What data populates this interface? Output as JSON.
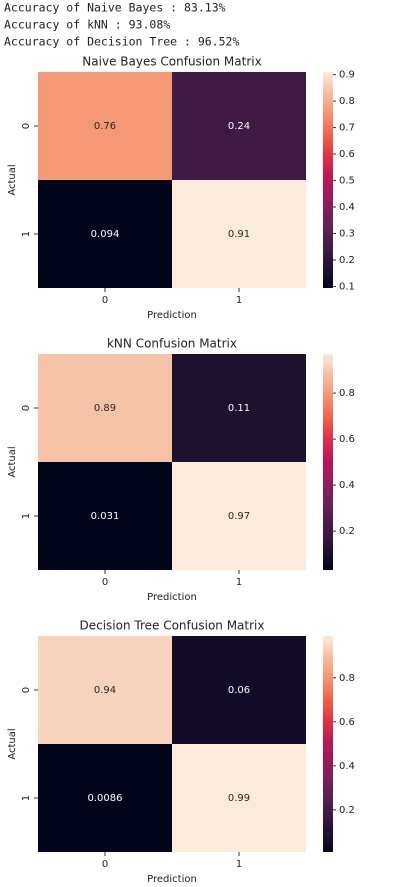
{
  "output_lines": [
    "Accuracy of Naive Bayes : 83.13%",
    "Accuracy of kNN : 93.08%",
    "Accuracy of Decision Tree : 96.52%"
  ],
  "chart_data": [
    {
      "type": "heatmap",
      "title": "Naive Bayes Confusion Matrix",
      "xlabel": "Prediction",
      "ylabel": "Actual",
      "x_categories": [
        "0",
        "1"
      ],
      "y_categories": [
        "0",
        "1"
      ],
      "values": [
        [
          0.76,
          0.24
        ],
        [
          0.094,
          0.91
        ]
      ],
      "colormap": "rocket",
      "colorbar_lim": [
        0.094,
        0.91
      ],
      "colorbar_ticks": [
        0.1,
        0.2,
        0.3,
        0.4,
        0.5,
        0.6,
        0.7,
        0.8,
        0.9
      ]
    },
    {
      "type": "heatmap",
      "title": "kNN Confusion Matrix",
      "xlabel": "Prediction",
      "ylabel": "Actual",
      "x_categories": [
        "0",
        "1"
      ],
      "y_categories": [
        "0",
        "1"
      ],
      "values": [
        [
          0.89,
          0.11
        ],
        [
          0.031,
          0.97
        ]
      ],
      "colormap": "rocket",
      "colorbar_lim": [
        0.031,
        0.97
      ],
      "colorbar_ticks": [
        0.2,
        0.4,
        0.6,
        0.8
      ]
    },
    {
      "type": "heatmap",
      "title": "Decision Tree Confusion Matrix",
      "xlabel": "Prediction",
      "ylabel": "Actual",
      "x_categories": [
        "0",
        "1"
      ],
      "y_categories": [
        "0",
        "1"
      ],
      "values": [
        [
          0.94,
          0.06
        ],
        [
          0.0086,
          0.99
        ]
      ],
      "colormap": "rocket",
      "colorbar_lim": [
        0.0086,
        0.99
      ],
      "colorbar_ticks": [
        0.2,
        0.4,
        0.6,
        0.8
      ]
    }
  ]
}
